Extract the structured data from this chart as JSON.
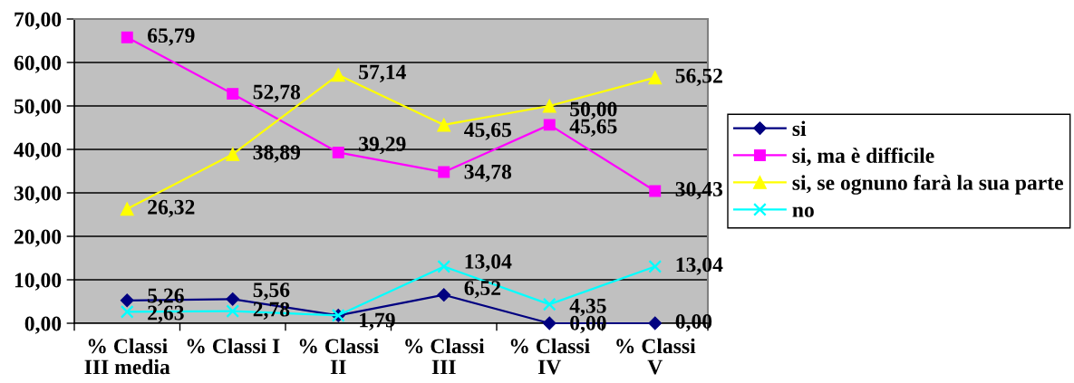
{
  "chart_data": {
    "type": "line",
    "categories": [
      "% Classi III media",
      "% Classi I",
      "% Classi II",
      "% Classi III",
      "% Classi IV",
      "% Classi V"
    ],
    "series": [
      {
        "name": "si",
        "color": "#000080",
        "marker": "diamond",
        "values": [
          5.26,
          5.56,
          1.79,
          6.52,
          0.0,
          0.0
        ],
        "value_labels": [
          "5,26",
          "5,56",
          "1,79",
          "6,52",
          "0,00",
          "0,00"
        ]
      },
      {
        "name": "si, ma è difficile",
        "color": "#ff00ff",
        "marker": "square",
        "values": [
          65.79,
          52.78,
          39.29,
          34.78,
          45.65,
          30.43
        ],
        "value_labels": [
          "65,79",
          "52,78",
          "39,29",
          "34,78",
          "45,65",
          "30,43"
        ]
      },
      {
        "name": "si, se ognuno farà la sua parte",
        "color": "#ffff00",
        "marker": "triangle",
        "values": [
          26.32,
          38.89,
          57.14,
          45.65,
          50.0,
          56.52
        ],
        "value_labels": [
          "26,32",
          "38,89",
          "57,14",
          "45,65",
          "50,00",
          "56,52"
        ]
      },
      {
        "name": "no",
        "color": "#00ffff",
        "marker": "cross",
        "values": [
          2.63,
          2.78,
          1.8,
          13.04,
          4.35,
          13.04
        ],
        "value_labels": [
          "2,63",
          "2,78",
          null,
          "13,04",
          "4,35",
          "13,04"
        ]
      }
    ],
    "ylim": [
      0,
      70
    ],
    "yticks": [
      {
        "value": 0,
        "label": "0,00"
      },
      {
        "value": 10,
        "label": "10,00"
      },
      {
        "value": 20,
        "label": "20,00"
      },
      {
        "value": 30,
        "label": "30,00"
      },
      {
        "value": 40,
        "label": "40,00"
      },
      {
        "value": 50,
        "label": "50,00"
      },
      {
        "value": 60,
        "label": "60,00"
      },
      {
        "value": 70,
        "label": "70,00"
      }
    ],
    "grid": "y",
    "legend": "right"
  }
}
